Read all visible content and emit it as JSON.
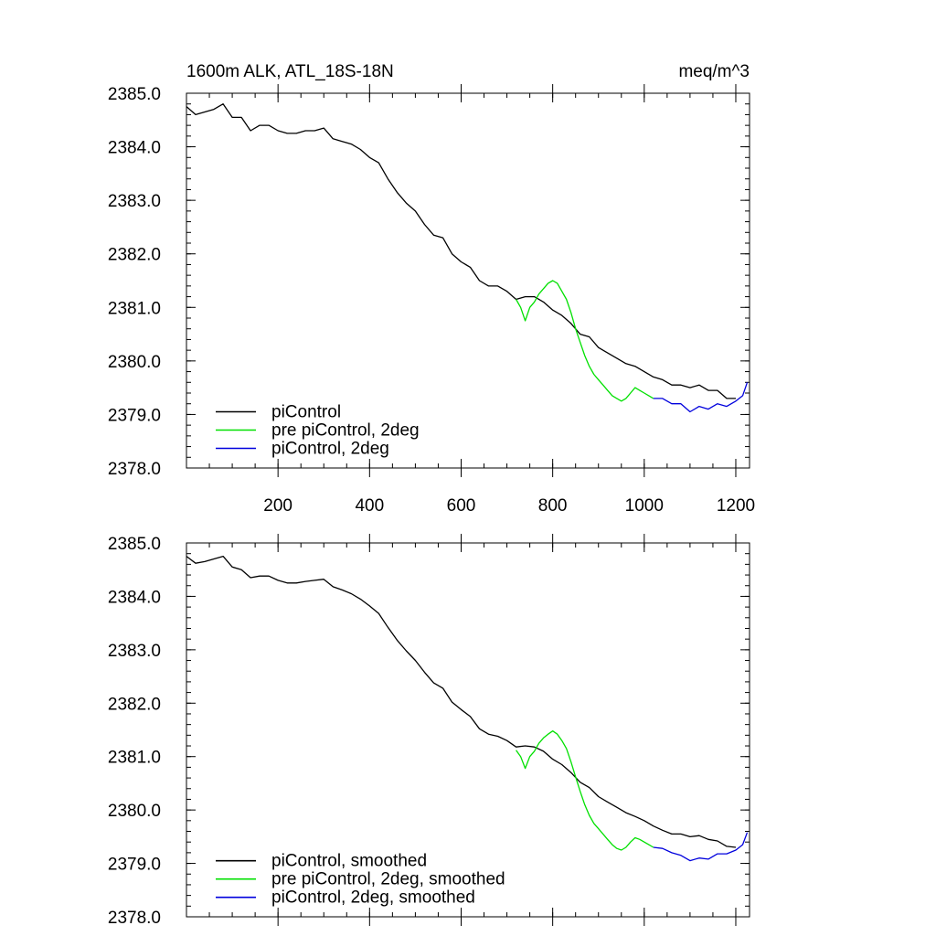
{
  "colors": {
    "piControl": "#000000",
    "pre_piControl_2deg": "#00e000",
    "piControl_2deg": "#0000dd"
  },
  "chart_data": [
    {
      "type": "line",
      "title": "1600m ALK, ATL_18S-18N",
      "units": "meq/m^3",
      "xlabel": "",
      "ylabel": "",
      "xlim": [
        0,
        1230
      ],
      "ylim": [
        2378.0,
        2385.0
      ],
      "x_ticks": [
        200,
        400,
        600,
        800,
        1000,
        1200
      ],
      "x_tick_labels": [
        "200",
        "400",
        "600",
        "800",
        "1000",
        "1200"
      ],
      "y_ticks": [
        2378.0,
        2379.0,
        2380.0,
        2381.0,
        2382.0,
        2383.0,
        2384.0,
        2385.0
      ],
      "y_tick_labels": [
        "2378.0",
        "2379.0",
        "2380.0",
        "2381.0",
        "2382.0",
        "2383.0",
        "2384.0",
        "2385.0"
      ],
      "grid": false,
      "legend_position": "bottom-left",
      "series": [
        {
          "name": "piControl",
          "color_key": "piControl",
          "x": [
            0,
            20,
            40,
            60,
            80,
            100,
            120,
            140,
            160,
            180,
            200,
            220,
            240,
            260,
            280,
            300,
            320,
            340,
            360,
            380,
            400,
            420,
            440,
            460,
            480,
            500,
            520,
            540,
            560,
            580,
            600,
            620,
            640,
            660,
            680,
            700,
            720,
            740,
            760,
            780,
            800,
            820,
            840,
            860,
            880,
            900,
            920,
            940,
            960,
            980,
            1000,
            1020,
            1040,
            1060,
            1080,
            1100,
            1120,
            1140,
            1160,
            1180,
            1200
          ],
          "y": [
            2384.75,
            2384.6,
            2384.65,
            2384.7,
            2384.8,
            2384.55,
            2384.55,
            2384.3,
            2384.4,
            2384.4,
            2384.3,
            2384.25,
            2384.25,
            2384.3,
            2384.3,
            2384.35,
            2384.15,
            2384.1,
            2384.05,
            2383.95,
            2383.8,
            2383.7,
            2383.4,
            2383.15,
            2382.95,
            2382.8,
            2382.55,
            2382.35,
            2382.3,
            2382.0,
            2381.85,
            2381.75,
            2381.5,
            2381.4,
            2381.4,
            2381.3,
            2381.15,
            2381.2,
            2381.2,
            2381.1,
            2380.95,
            2380.85,
            2380.7,
            2380.5,
            2380.45,
            2380.25,
            2380.15,
            2380.05,
            2379.95,
            2379.9,
            2379.8,
            2379.7,
            2379.65,
            2379.55,
            2379.55,
            2379.5,
            2379.55,
            2379.45,
            2379.45,
            2379.3,
            2379.3
          ]
        },
        {
          "name": "pre piControl, 2deg",
          "color_key": "pre_piControl_2deg",
          "x": [
            720,
            730,
            740,
            750,
            760,
            770,
            780,
            790,
            800,
            810,
            820,
            830,
            840,
            850,
            860,
            870,
            880,
            890,
            900,
            910,
            920,
            930,
            940,
            950,
            960,
            970,
            980,
            990,
            1000,
            1010,
            1020
          ],
          "y": [
            2381.15,
            2381.0,
            2380.75,
            2381.0,
            2381.1,
            2381.25,
            2381.35,
            2381.45,
            2381.5,
            2381.45,
            2381.3,
            2381.15,
            2380.9,
            2380.6,
            2380.35,
            2380.1,
            2379.9,
            2379.75,
            2379.65,
            2379.55,
            2379.45,
            2379.35,
            2379.3,
            2379.25,
            2379.3,
            2379.4,
            2379.5,
            2379.45,
            2379.4,
            2379.35,
            2379.3
          ]
        },
        {
          "name": "piControl, 2deg",
          "color_key": "piControl_2deg",
          "x": [
            1020,
            1040,
            1060,
            1080,
            1100,
            1120,
            1140,
            1160,
            1180,
            1200,
            1215,
            1225
          ],
          "y": [
            2379.3,
            2379.3,
            2379.2,
            2379.2,
            2379.05,
            2379.15,
            2379.1,
            2379.2,
            2379.15,
            2379.25,
            2379.35,
            2379.6
          ]
        }
      ]
    },
    {
      "type": "line",
      "title": "",
      "units": "",
      "xlabel": "",
      "ylabel": "",
      "xlim": [
        0,
        1230
      ],
      "ylim": [
        2378.0,
        2385.0
      ],
      "x_ticks": [
        200,
        400,
        600,
        800,
        1000,
        1200
      ],
      "x_tick_labels": [],
      "y_ticks": [
        2378.0,
        2379.0,
        2380.0,
        2381.0,
        2382.0,
        2383.0,
        2384.0,
        2385.0
      ],
      "y_tick_labels": [
        "2378.0",
        "2379.0",
        "2380.0",
        "2381.0",
        "2382.0",
        "2383.0",
        "2384.0",
        "2385.0"
      ],
      "grid": false,
      "legend_position": "bottom-left",
      "series": [
        {
          "name": "piControl, smoothed",
          "color_key": "piControl",
          "x": [
            0,
            20,
            40,
            60,
            80,
            100,
            120,
            140,
            160,
            180,
            200,
            220,
            240,
            260,
            280,
            300,
            320,
            340,
            360,
            380,
            400,
            420,
            440,
            460,
            480,
            500,
            520,
            540,
            560,
            580,
            600,
            620,
            640,
            660,
            680,
            700,
            720,
            740,
            760,
            780,
            800,
            820,
            840,
            860,
            880,
            900,
            920,
            940,
            960,
            980,
            1000,
            1020,
            1040,
            1060,
            1080,
            1100,
            1120,
            1140,
            1160,
            1180,
            1200
          ],
          "y": [
            2384.75,
            2384.62,
            2384.65,
            2384.7,
            2384.75,
            2384.55,
            2384.5,
            2384.35,
            2384.38,
            2384.38,
            2384.3,
            2384.25,
            2384.25,
            2384.28,
            2384.3,
            2384.32,
            2384.18,
            2384.12,
            2384.05,
            2383.95,
            2383.82,
            2383.68,
            2383.42,
            2383.18,
            2382.98,
            2382.8,
            2382.58,
            2382.38,
            2382.28,
            2382.02,
            2381.88,
            2381.75,
            2381.52,
            2381.42,
            2381.38,
            2381.3,
            2381.18,
            2381.2,
            2381.18,
            2381.1,
            2380.95,
            2380.85,
            2380.7,
            2380.52,
            2380.42,
            2380.25,
            2380.15,
            2380.05,
            2379.95,
            2379.88,
            2379.8,
            2379.7,
            2379.62,
            2379.55,
            2379.55,
            2379.5,
            2379.52,
            2379.45,
            2379.42,
            2379.32,
            2379.3
          ]
        },
        {
          "name": "pre piControl, 2deg, smoothed",
          "color_key": "pre_piControl_2deg",
          "x": [
            720,
            730,
            740,
            750,
            760,
            770,
            780,
            790,
            800,
            810,
            820,
            830,
            840,
            850,
            860,
            870,
            880,
            890,
            900,
            910,
            920,
            930,
            940,
            950,
            960,
            970,
            980,
            990,
            1000,
            1010,
            1020
          ],
          "y": [
            2381.12,
            2381.0,
            2380.78,
            2381.0,
            2381.1,
            2381.25,
            2381.35,
            2381.42,
            2381.48,
            2381.42,
            2381.3,
            2381.15,
            2380.9,
            2380.62,
            2380.35,
            2380.1,
            2379.9,
            2379.75,
            2379.65,
            2379.55,
            2379.45,
            2379.35,
            2379.28,
            2379.25,
            2379.3,
            2379.4,
            2379.48,
            2379.45,
            2379.4,
            2379.35,
            2379.3
          ]
        },
        {
          "name": "piControl, 2deg, smoothed",
          "color_key": "piControl_2deg",
          "x": [
            1020,
            1040,
            1060,
            1080,
            1100,
            1120,
            1140,
            1160,
            1180,
            1200,
            1215,
            1225
          ],
          "y": [
            2379.3,
            2379.28,
            2379.2,
            2379.15,
            2379.05,
            2379.1,
            2379.08,
            2379.18,
            2379.18,
            2379.25,
            2379.35,
            2379.58
          ]
        }
      ]
    }
  ]
}
